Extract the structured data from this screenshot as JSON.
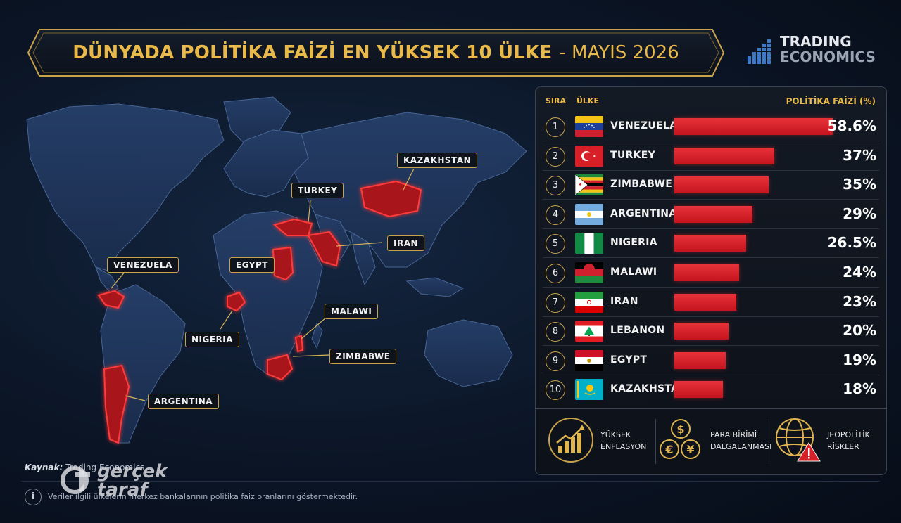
{
  "title": {
    "main": "DÜNYADA POLİTİKA FAİZİ EN YÜKSEK 10 ÜLKE",
    "date": "- MAYIS 2026"
  },
  "logo": {
    "line1": "TRADING",
    "line2": "ECONOMICS"
  },
  "table": {
    "col_rank": "SIRA",
    "col_country": "ÜLKE",
    "col_rate": "POLİTİKA FAİZİ (%)"
  },
  "chart_data": {
    "type": "bar",
    "categories": [
      "VENEZUELA",
      "TURKEY",
      "ZIMBABWE",
      "ARGENTINA",
      "NIGERIA",
      "MALAWI",
      "IRAN",
      "LEBANON",
      "EGYPT",
      "KAZAKHSTAN"
    ],
    "ranks": [
      "1",
      "2",
      "3",
      "4",
      "5",
      "6",
      "7",
      "8",
      "9",
      "10"
    ],
    "values": [
      58.6,
      37,
      35,
      29,
      26.5,
      24,
      23,
      20,
      19,
      18
    ],
    "value_labels": [
      "58.6%",
      "37%",
      "35%",
      "29%",
      "26.5%",
      "24%",
      "23%",
      "20%",
      "19%",
      "18%"
    ],
    "bar_color": "#d81e27",
    "xlim": [
      0,
      58.6
    ]
  },
  "map": {
    "labels": [
      "VENEZUELA",
      "NIGERIA",
      "ARGENTINA",
      "EGYPT",
      "TURKEY",
      "IRAN",
      "KAZAKHSTAN",
      "MALAWI",
      "ZIMBABWE"
    ],
    "highlight_color": "#ff2b2b"
  },
  "factors": [
    {
      "line1": "YÜKSEK",
      "line2": "ENFLASYON",
      "icon": "rising-chart-icon"
    },
    {
      "line1": "PARA BİRİMİ",
      "line2": "DALGALANMASI",
      "icon": "currency-icon"
    },
    {
      "line1": "JEOPOLİTİK",
      "line2": "RİSKLER",
      "icon": "globe-warning-icon"
    }
  ],
  "source": {
    "label": "Kaynak:",
    "value": "Trading Economics"
  },
  "note": "Veriler ilgili ülkelerin merkez bankalarının politika faiz oranlarını göstermektedir.",
  "watermark": {
    "text": "gerçek taraf"
  }
}
